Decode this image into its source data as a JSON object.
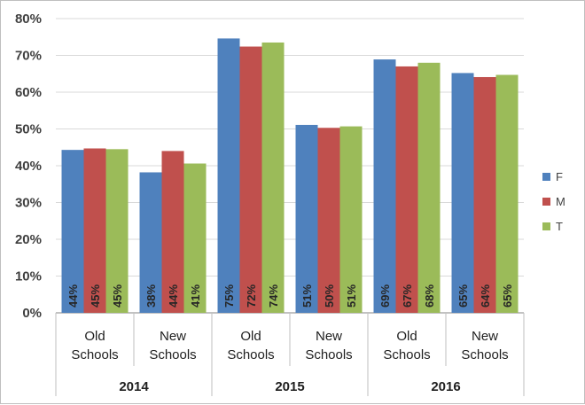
{
  "chart_data": {
    "type": "bar",
    "title": "",
    "xlabel": "",
    "ylabel": "",
    "ylim": [
      0,
      0.8
    ],
    "yticks": [
      "0%",
      "10%",
      "20%",
      "30%",
      "40%",
      "50%",
      "60%",
      "70%",
      "80%"
    ],
    "grid": true,
    "legend_position": "right",
    "groups": [
      "2014",
      "2015",
      "2016"
    ],
    "categories": [
      "Old Schools",
      "New Schools",
      "Old Schools",
      "New Schools",
      "Old Schools",
      "New Schools"
    ],
    "series": [
      {
        "name": "F",
        "color": "#4f81bd",
        "values": [
          0.443,
          0.382,
          0.746,
          0.511,
          0.689,
          0.652
        ],
        "labels": [
          "44%",
          "38%",
          "75%",
          "51%",
          "69%",
          "65%"
        ]
      },
      {
        "name": "M",
        "color": "#c0504d",
        "values": [
          0.447,
          0.44,
          0.724,
          0.503,
          0.67,
          0.641
        ],
        "labels": [
          "45%",
          "44%",
          "72%",
          "50%",
          "67%",
          "64%"
        ]
      },
      {
        "name": "T",
        "color": "#9bbb59",
        "values": [
          0.445,
          0.406,
          0.735,
          0.507,
          0.68,
          0.647
        ],
        "labels": [
          "45%",
          "41%",
          "74%",
          "51%",
          "68%",
          "65%"
        ]
      }
    ]
  }
}
